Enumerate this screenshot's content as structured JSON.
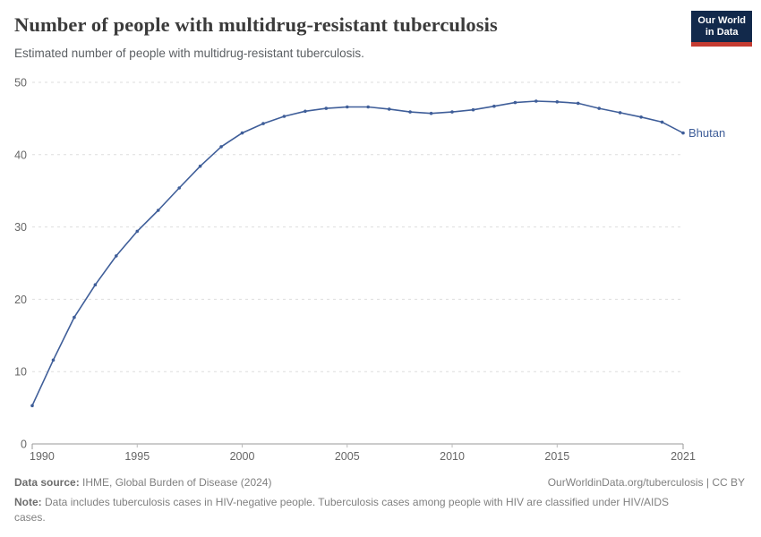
{
  "header": {
    "title": "Number of people with multidrug-resistant tuberculosis",
    "subtitle": "Estimated number of people with multidrug-resistant tuberculosis.",
    "logo": {
      "line1": "Our World",
      "line2": "in Data",
      "bg_color": "#12294B",
      "accent_color": "#C43B31"
    }
  },
  "chart_data": {
    "type": "line",
    "title": "Number of people with multidrug-resistant tuberculosis",
    "entity": "Bhutan",
    "line_color": "#3F5E99",
    "grid": "horizontal-dashed",
    "legend_position": "end-of-line-label",
    "xlim": [
      1990,
      2021
    ],
    "ylim": [
      0,
      50
    ],
    "x_ticks": [
      1990,
      1995,
      2000,
      2005,
      2010,
      2015,
      2021
    ],
    "y_ticks": [
      0,
      10,
      20,
      30,
      40,
      50
    ],
    "x": [
      1990,
      1991,
      1992,
      1993,
      1994,
      1995,
      1996,
      1997,
      1998,
      1999,
      2000,
      2001,
      2002,
      2003,
      2004,
      2005,
      2006,
      2007,
      2008,
      2009,
      2010,
      2011,
      2012,
      2013,
      2014,
      2015,
      2016,
      2017,
      2018,
      2019,
      2020,
      2021
    ],
    "series": [
      {
        "name": "Bhutan",
        "values": [
          5.3,
          11.6,
          17.5,
          22.0,
          26.0,
          29.4,
          32.3,
          35.4,
          38.4,
          41.1,
          43.0,
          44.3,
          45.3,
          46.0,
          46.4,
          46.6,
          46.6,
          46.3,
          45.9,
          45.7,
          45.9,
          46.2,
          46.7,
          47.2,
          47.4,
          47.3,
          47.1,
          46.4,
          45.8,
          45.2,
          44.5,
          43.0
        ]
      }
    ]
  },
  "footer": {
    "datasource_label": "Data source:",
    "datasource_text": " IHME, Global Burden of Disease (2024)",
    "attribution": "OurWorldinData.org/tuberculosis | CC BY",
    "note_label": "Note:",
    "note_text": " Data includes tuberculosis cases in HIV-negative people. Tuberculosis cases among people with HIV are classified under HIV/AIDS cases."
  }
}
